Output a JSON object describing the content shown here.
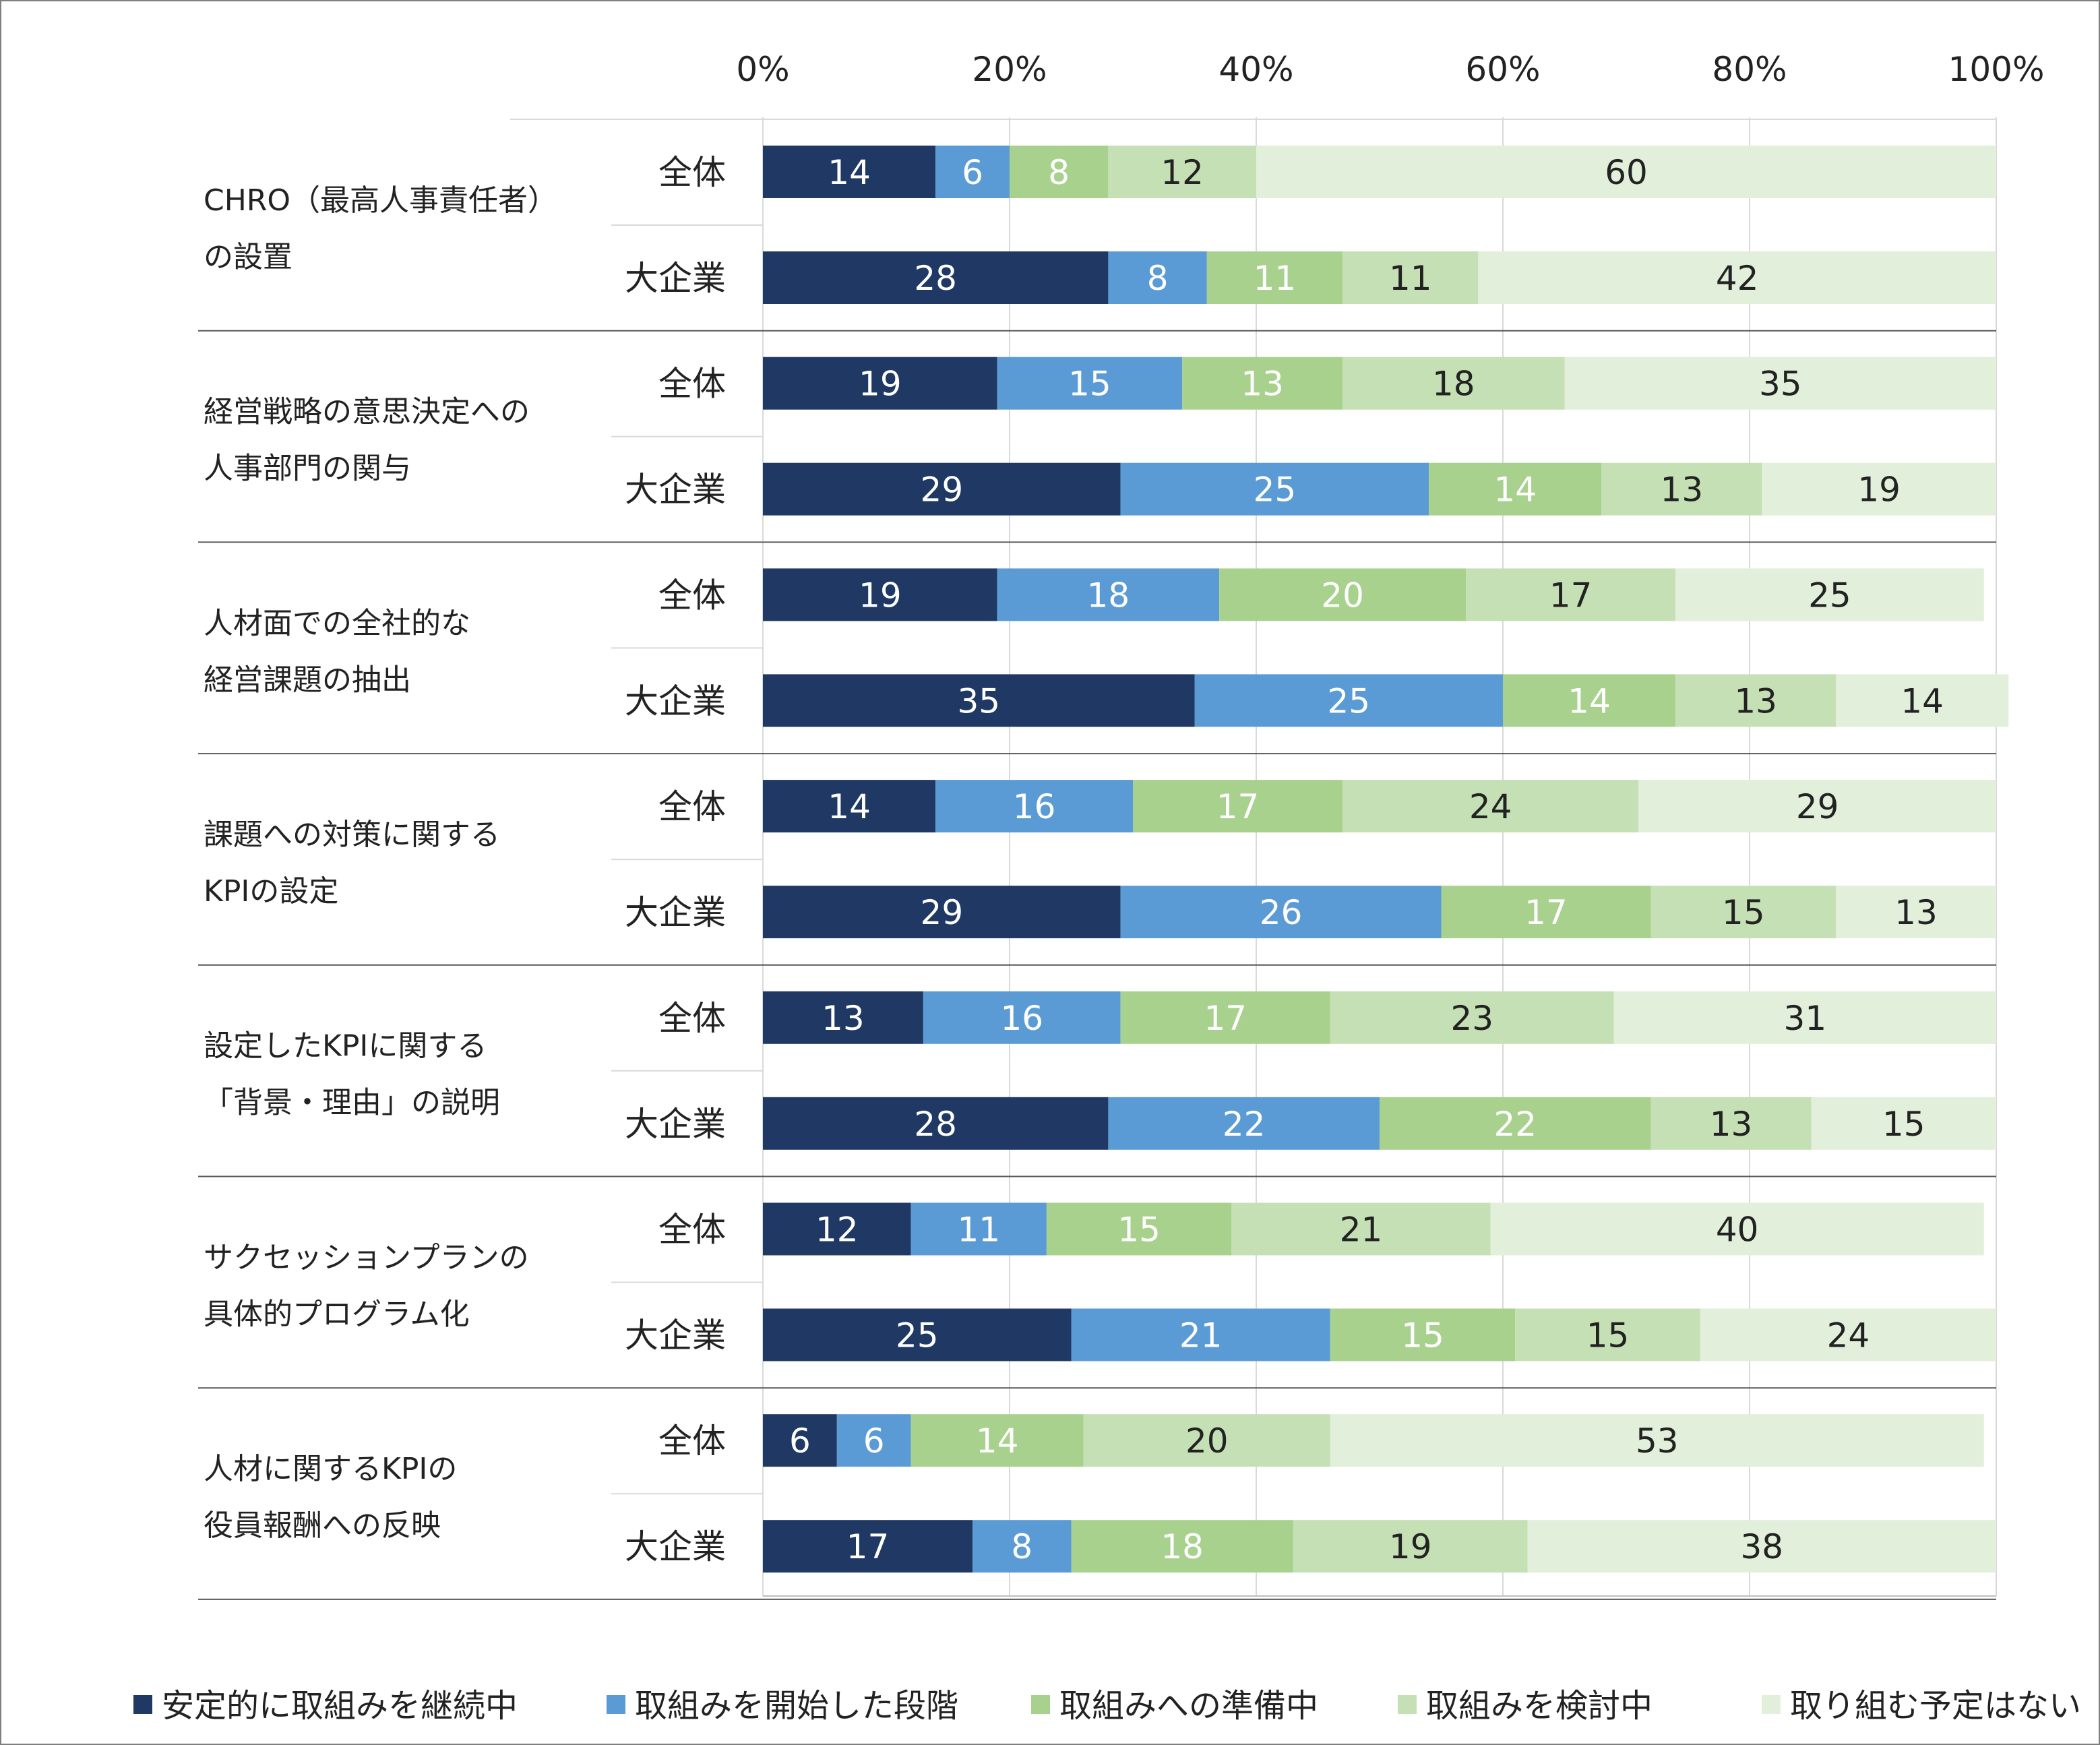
{
  "chart_data": {
    "type": "bar",
    "orientation": "horizontal",
    "stacked": true,
    "percent_stacked": true,
    "x_ticks": [
      "0%",
      "20%",
      "40%",
      "60%",
      "80%",
      "100%"
    ],
    "xlim": [
      0,
      100
    ],
    "grid": "vertical",
    "legend_position": "bottom",
    "segments": [
      {
        "name": "安定的に取組みを継続中",
        "color": "#1f3864",
        "label_color": "#ffffff"
      },
      {
        "name": "取組みを開始した段階",
        "color": "#5b9bd5",
        "label_color": "#ffffff"
      },
      {
        "name": "取組みへの準備中",
        "color": "#a9d18e",
        "label_color": "#ffffff"
      },
      {
        "name": "取組みを検討中",
        "color": "#c5e0b4",
        "label_color": "#222222"
      },
      {
        "name": "取り組む予定はない",
        "color": "#e2efda",
        "label_color": "#222222"
      }
    ],
    "groups": [
      {
        "label_lines": [
          "CHRO（最高人事責任者）",
          "の設置"
        ],
        "rows": [
          {
            "label": "全体",
            "values": [
              14,
              6,
              8,
              12,
              60
            ]
          },
          {
            "label": "大企業",
            "values": [
              28,
              8,
              11,
              11,
              42
            ]
          }
        ]
      },
      {
        "label_lines": [
          "経営戦略の意思決定への",
          "人事部門の関与"
        ],
        "rows": [
          {
            "label": "全体",
            "values": [
              19,
              15,
              13,
              18,
              35
            ]
          },
          {
            "label": "大企業",
            "values": [
              29,
              25,
              14,
              13,
              19
            ]
          }
        ]
      },
      {
        "label_lines": [
          "人材面での全社的な",
          "経営課題の抽出"
        ],
        "rows": [
          {
            "label": "全体",
            "values": [
              19,
              18,
              20,
              17,
              25
            ]
          },
          {
            "label": "大企業",
            "values": [
              35,
              25,
              14,
              13,
              14
            ]
          }
        ]
      },
      {
        "label_lines": [
          "課題への対策に関する",
          "KPIの設定"
        ],
        "rows": [
          {
            "label": "全体",
            "values": [
              14,
              16,
              17,
              24,
              29
            ]
          },
          {
            "label": "大企業",
            "values": [
              29,
              26,
              17,
              15,
              13
            ]
          }
        ]
      },
      {
        "label_lines": [
          "設定したKPIに関する",
          "「背景・理由」の説明"
        ],
        "rows": [
          {
            "label": "全体",
            "values": [
              13,
              16,
              17,
              23,
              31
            ]
          },
          {
            "label": "大企業",
            "values": [
              28,
              22,
              22,
              13,
              15
            ]
          }
        ]
      },
      {
        "label_lines": [
          "サクセッションプランの",
          "具体的プログラム化"
        ],
        "rows": [
          {
            "label": "全体",
            "values": [
              12,
              11,
              15,
              21,
              40
            ]
          },
          {
            "label": "大企業",
            "values": [
              25,
              21,
              15,
              15,
              24
            ]
          }
        ]
      },
      {
        "label_lines": [
          "人材に関するKPIの",
          "役員報酬への反映"
        ],
        "rows": [
          {
            "label": "全体",
            "values": [
              6,
              6,
              14,
              20,
              53
            ]
          },
          {
            "label": "大企業",
            "values": [
              17,
              8,
              18,
              19,
              38
            ]
          }
        ]
      }
    ]
  }
}
